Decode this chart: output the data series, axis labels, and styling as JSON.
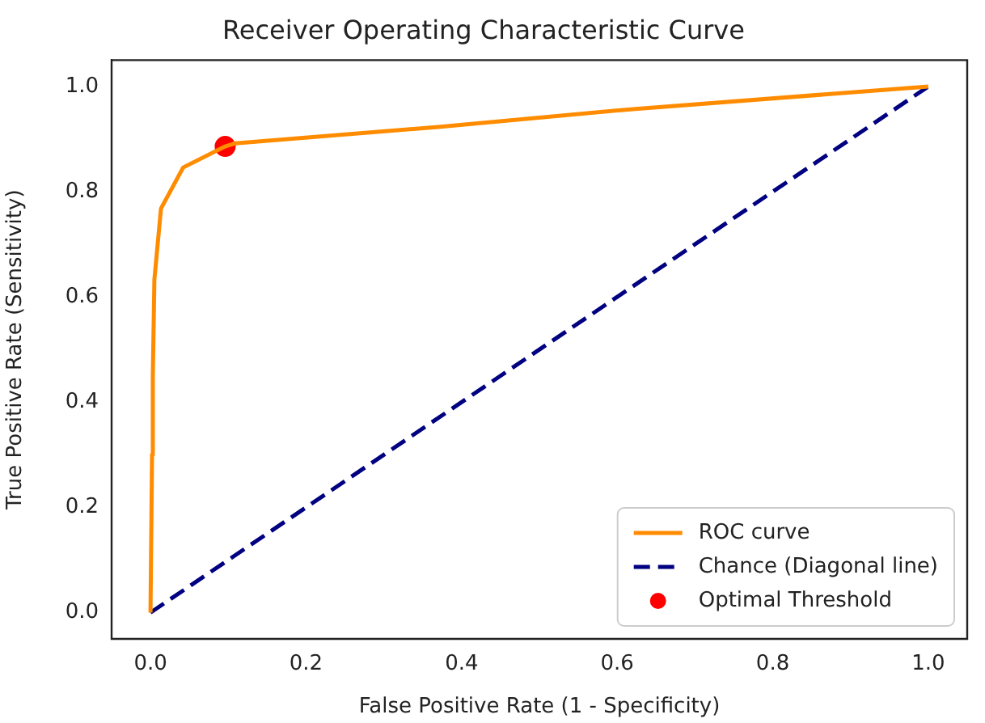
{
  "chart_data": {
    "type": "line",
    "title": "Receiver Operating Characteristic Curve",
    "xlabel": "False Positive Rate (1 - Specificity)",
    "ylabel": "True Positive Rate (Sensitivity)",
    "xlim": [
      -0.05,
      1.05
    ],
    "ylim": [
      -0.05,
      1.05
    ],
    "xticks": [
      {
        "value": 0,
        "label": "0.0"
      },
      {
        "value": 0.2,
        "label": "0.2"
      },
      {
        "value": 0.4,
        "label": "0.4"
      },
      {
        "value": 0.6,
        "label": "0.6"
      },
      {
        "value": 0.8,
        "label": "0.8"
      },
      {
        "value": 1,
        "label": "1.0"
      }
    ],
    "yticks": [
      {
        "value": 0,
        "label": "0.0"
      },
      {
        "value": 0.2,
        "label": "0.2"
      },
      {
        "value": 0.4,
        "label": "0.4"
      },
      {
        "value": 0.6,
        "label": "0.6"
      },
      {
        "value": 0.8,
        "label": "0.8"
      },
      {
        "value": 1,
        "label": "1.0"
      }
    ],
    "grid": false,
    "legend": "bottom right",
    "series": [
      {
        "name": "ROC curve",
        "type": "line",
        "color": "#ff8c00",
        "line_style": "solid",
        "marker": "none",
        "x": [
          0,
          0.002,
          0.003,
          0.005,
          0.0135,
          0.042,
          0.096,
          0.109,
          0.37,
          0.62,
          1
        ],
        "values": [
          0,
          0.3,
          0.45,
          0.633,
          0.768,
          0.846,
          0.886,
          0.892,
          0.923,
          0.957,
          1
        ]
      },
      {
        "name": "Chance (Diagonal line)",
        "type": "line",
        "color": "#000080",
        "line_style": "dashed",
        "marker": "none",
        "x": [
          0,
          1
        ],
        "values": [
          0,
          1
        ]
      },
      {
        "name": "Optimal Threshold",
        "type": "scatter",
        "color": "#ff0000",
        "marker": "circle",
        "x": [
          0.096
        ],
        "values": [
          0.886
        ]
      }
    ]
  }
}
